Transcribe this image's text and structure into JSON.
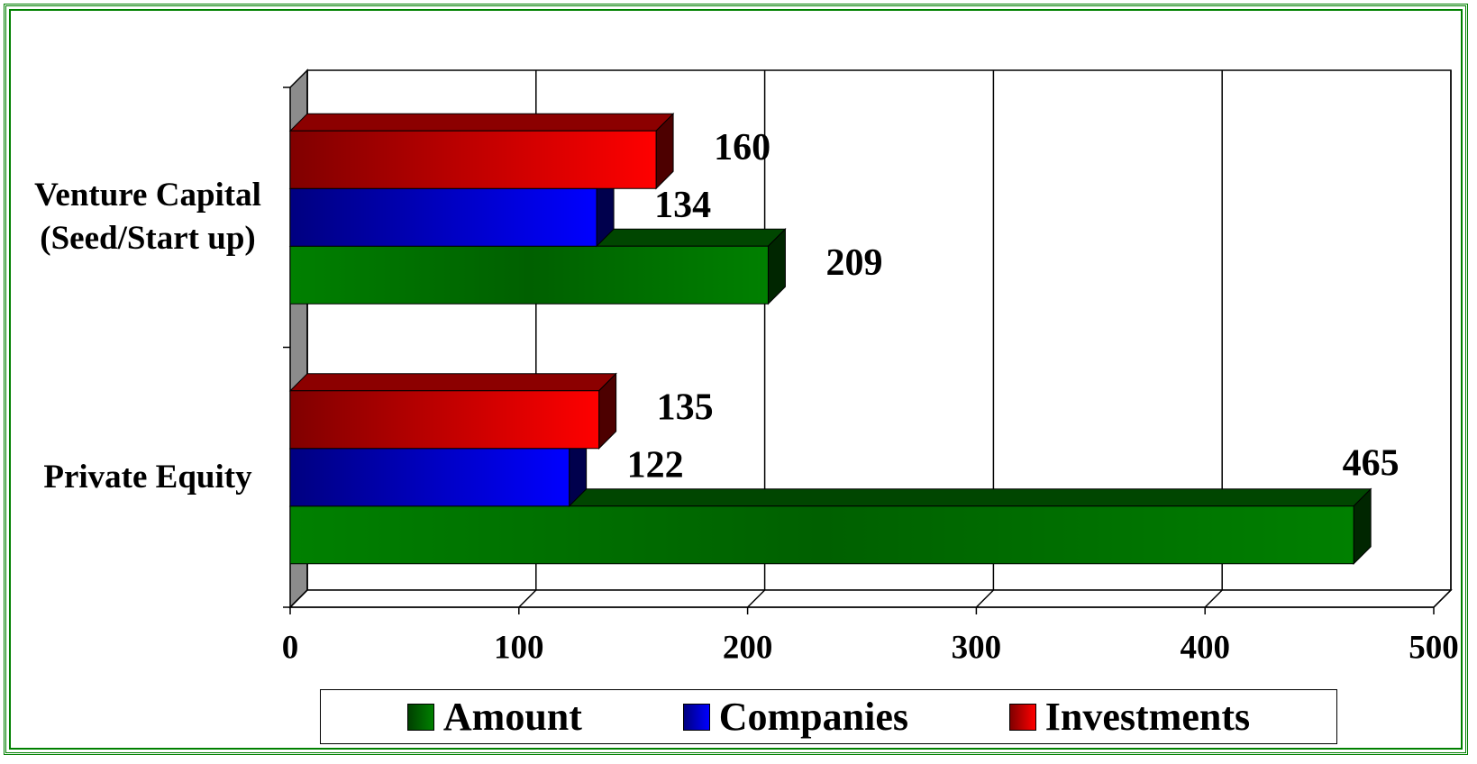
{
  "chart_data": {
    "type": "bar",
    "orientation": "horizontal",
    "categories": [
      "Venture Capital\n(Seed/Start up)",
      "Private Equity"
    ],
    "series": [
      {
        "name": "Amount",
        "color": "#008000",
        "values": [
          209,
          465
        ]
      },
      {
        "name": "Companies",
        "color": "#0000ff",
        "values": [
          134,
          122
        ]
      },
      {
        "name": "Investments",
        "color": "#ff0000",
        "values": [
          160,
          135
        ]
      }
    ],
    "xlim": [
      0,
      500
    ],
    "xticks": [
      0,
      100,
      200,
      300,
      400,
      500
    ],
    "grid": true,
    "legend": "bottom"
  }
}
